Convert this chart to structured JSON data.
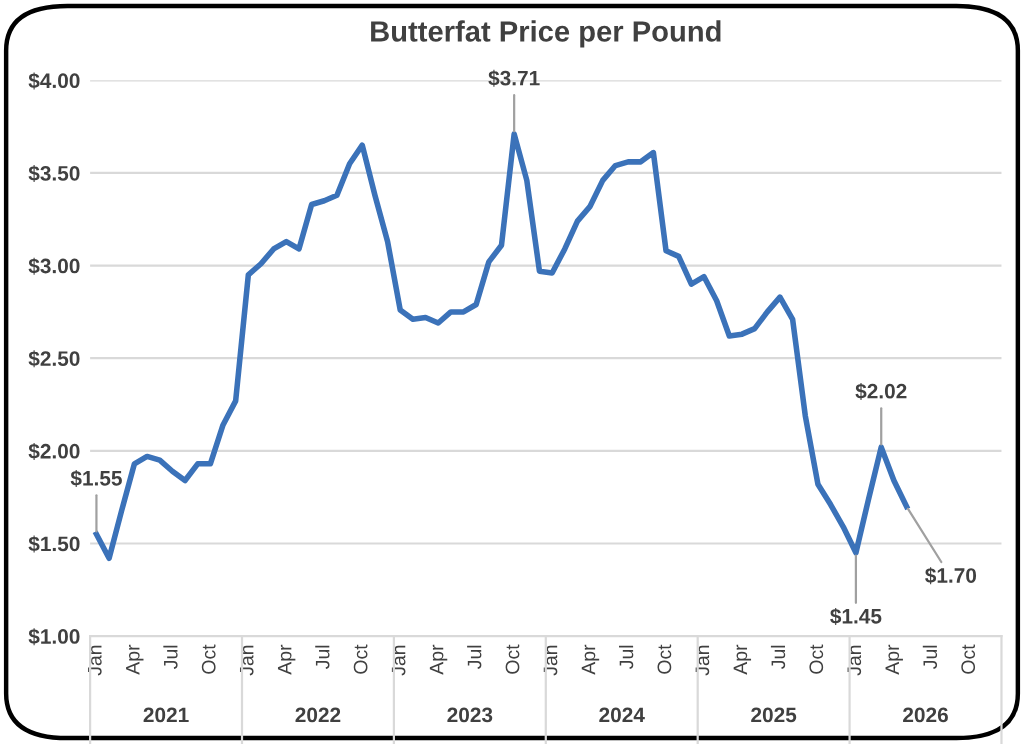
{
  "chart_data": {
    "type": "line",
    "title": "Butterfat Price per Pound",
    "categories": [
      "Jan",
      null,
      null,
      "Apr",
      null,
      null,
      "Jul",
      null,
      null,
      "Oct",
      null,
      null,
      "Jan",
      null,
      null,
      "Apr",
      null,
      null,
      "Jul",
      null,
      null,
      "Oct",
      null,
      null,
      "Jan",
      null,
      null,
      "Apr",
      null,
      null,
      "Jul",
      null,
      null,
      "Oct",
      null,
      null,
      "Jan",
      null,
      null,
      "Apr",
      null,
      null,
      "Jul",
      null,
      null,
      "Oct",
      null,
      null,
      "Jan",
      null,
      null,
      "Apr",
      null,
      null,
      "Jul",
      null,
      null,
      "Oct",
      null,
      null,
      "Jan",
      null,
      null,
      "Apr",
      null,
      null,
      "Jul",
      null,
      null,
      "Oct",
      null,
      null
    ],
    "series": [
      {
        "color": "#3b72b9",
        "values": [
          1.55,
          1.42,
          1.68,
          1.93,
          1.97,
          1.95,
          1.89,
          1.84,
          1.93,
          1.93,
          2.14,
          2.27,
          2.95,
          3.01,
          3.09,
          3.13,
          3.09,
          3.33,
          3.35,
          3.38,
          3.55,
          3.65,
          3.38,
          3.13,
          2.76,
          2.71,
          2.72,
          2.69,
          2.75,
          2.75,
          2.79,
          3.02,
          3.11,
          3.71,
          3.46,
          2.97,
          2.96,
          3.09,
          3.24,
          3.32,
          3.46,
          3.54,
          3.56,
          3.56,
          3.61,
          3.08,
          3.05,
          2.9,
          2.94,
          2.81,
          2.62,
          2.63,
          2.66,
          2.75,
          2.83,
          2.71,
          2.19,
          1.82,
          1.71,
          1.59,
          1.45,
          1.74,
          2.02,
          1.84,
          1.7,
          null,
          null,
          null,
          null,
          null,
          null,
          null
        ],
        "value_labels": [
          "$1.55",
          null,
          null,
          null,
          null,
          null,
          null,
          null,
          null,
          null,
          null,
          null,
          null,
          null,
          null,
          null,
          null,
          null,
          null,
          null,
          null,
          null,
          null,
          null,
          null,
          null,
          null,
          null,
          null,
          null,
          null,
          null,
          null,
          "$3.71",
          null,
          null,
          null,
          null,
          null,
          null,
          null,
          null,
          null,
          null,
          null,
          null,
          null,
          null,
          null,
          null,
          null,
          null,
          null,
          null,
          null,
          null,
          null,
          null,
          null,
          null,
          "$1.45",
          null,
          "$2.02",
          null,
          "$1.70",
          null,
          null,
          null,
          null,
          null,
          null,
          null
        ]
      }
    ],
    "ylim": [
      1.0,
      4.0
    ],
    "yticks": [
      {
        "value": 1.0,
        "label": "$1.00"
      },
      {
        "value": 1.5,
        "label": "$1.50"
      },
      {
        "value": 2.0,
        "label": "$2.00"
      },
      {
        "value": 2.5,
        "label": "$2.50"
      },
      {
        "value": 3.0,
        "label": "$3.00"
      },
      {
        "value": 3.5,
        "label": "$3.50"
      },
      {
        "value": 4.0,
        "label": "$4.00"
      }
    ],
    "grid": "y",
    "marker": "none",
    "line_style": "solid",
    "legend": false,
    "annotations": [
      "2021",
      "2022",
      "2023",
      "2024",
      "2025",
      "2026"
    ]
  }
}
